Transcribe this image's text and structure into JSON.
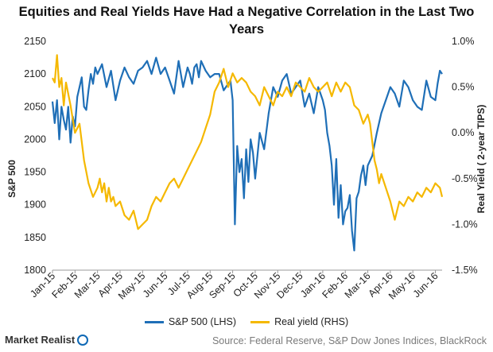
{
  "chart_data": {
    "type": "line",
    "title": "Equities and Real Yields Have Had a Negative Correlation in the Last Two Years",
    "ylabel": "S&P 500",
    "y2label": "Real Yield ( 2-year TIPS)",
    "ylim": [
      1800,
      2150
    ],
    "y2lim": [
      -1.5,
      1.0
    ],
    "yticks": [
      "2150",
      "2100",
      "2050",
      "2000",
      "1950",
      "1900",
      "1850",
      "1800"
    ],
    "y2ticks": [
      "1.0%",
      "0.5%",
      "0.0%",
      "-0.5%",
      "-1.0%",
      "-1.5%"
    ],
    "categories": [
      "Jan-15",
      "Feb-15",
      "Mar-15",
      "Apr-15",
      "May-15",
      "Jun-15",
      "Jul-15",
      "Aug-15",
      "Sep-15",
      "Oct-15",
      "Nov-15",
      "Dec-15",
      "Jan-16",
      "Feb-16",
      "Mar-16",
      "Apr-16",
      "May-16",
      "Jun-16"
    ],
    "series": [
      {
        "name": "S&P 500 (LHS)",
        "axis": "left",
        "color": "#1f6fb7",
        "x": [
          0,
          0.1,
          0.2,
          0.3,
          0.4,
          0.5,
          0.6,
          0.7,
          0.8,
          0.9,
          1.0,
          1.1,
          1.2,
          1.3,
          1.4,
          1.5,
          1.6,
          1.7,
          1.8,
          1.9,
          2.0,
          2.2,
          2.4,
          2.6,
          2.8,
          3.0,
          3.2,
          3.4,
          3.6,
          3.8,
          4.0,
          4.2,
          4.4,
          4.6,
          4.8,
          5.0,
          5.2,
          5.4,
          5.6,
          5.8,
          6.0,
          6.1,
          6.2,
          6.3,
          6.4,
          6.5,
          6.6,
          6.8,
          7.0,
          7.2,
          7.4,
          7.6,
          7.8,
          7.9,
          8.0,
          8.1,
          8.2,
          8.3,
          8.4,
          8.5,
          8.6,
          8.7,
          8.8,
          8.9,
          9.0,
          9.2,
          9.4,
          9.6,
          9.8,
          10.0,
          10.2,
          10.4,
          10.6,
          10.8,
          11.0,
          11.2,
          11.4,
          11.6,
          11.8,
          12.0,
          12.1,
          12.2,
          12.3,
          12.4,
          12.5,
          12.6,
          12.7,
          12.8,
          12.9,
          13.0,
          13.1,
          13.2,
          13.3,
          13.4,
          13.5,
          13.6,
          13.7,
          13.8,
          13.9,
          14.0,
          14.2,
          14.4,
          14.6,
          14.8,
          15.0,
          15.2,
          15.4,
          15.6,
          15.8,
          16.0,
          16.2,
          16.4,
          16.6,
          16.8,
          17.0,
          17.1,
          17.2,
          17.3
        ],
        "values": [
          2058,
          2025,
          2060,
          2000,
          2050,
          2030,
          2015,
          2050,
          1995,
          2035,
          2020,
          2065,
          2080,
          2095,
          2050,
          2045,
          2075,
          2100,
          2085,
          2110,
          2100,
          2115,
          2080,
          2105,
          2060,
          2090,
          2110,
          2095,
          2085,
          2105,
          2110,
          2120,
          2100,
          2125,
          2100,
          2110,
          2090,
          2070,
          2120,
          2080,
          2110,
          2100,
          2085,
          2110,
          2115,
          2095,
          2120,
          2105,
          2095,
          2100,
          2100,
          2075,
          2085,
          2090,
          2060,
          1870,
          1990,
          1950,
          1970,
          1910,
          1985,
          1935,
          2000,
          1980,
          1940,
          2010,
          1985,
          2040,
          2080,
          2065,
          2090,
          2100,
          2070,
          2080,
          2090,
          2050,
          2070,
          2040,
          2080,
          2060,
          2045,
          2010,
          1990,
          1960,
          1900,
          1970,
          1880,
          1930,
          1870,
          1890,
          1895,
          1915,
          1860,
          1830,
          1910,
          1920,
          1945,
          1960,
          1930,
          1960,
          1975,
          2010,
          2040,
          2060,
          2080,
          2070,
          2050,
          2090,
          2080,
          2060,
          2050,
          2045,
          2090,
          2065,
          2060,
          2085,
          2105,
          2100
        ]
      },
      {
        "name": "Real yield (RHS)",
        "axis": "right",
        "color": "#f5b800",
        "x": [
          0,
          0.1,
          0.2,
          0.3,
          0.4,
          0.5,
          0.6,
          0.8,
          1.0,
          1.2,
          1.4,
          1.6,
          1.8,
          2.0,
          2.1,
          2.2,
          2.3,
          2.4,
          2.5,
          2.6,
          2.7,
          2.8,
          3.0,
          3.2,
          3.4,
          3.6,
          3.8,
          4.0,
          4.2,
          4.4,
          4.6,
          4.8,
          5.0,
          5.2,
          5.4,
          5.6,
          5.8,
          6.0,
          6.2,
          6.4,
          6.6,
          6.8,
          7.0,
          7.2,
          7.4,
          7.6,
          7.8,
          8.0,
          8.2,
          8.4,
          8.6,
          8.8,
          9.0,
          9.2,
          9.4,
          9.6,
          9.8,
          10.0,
          10.2,
          10.4,
          10.6,
          10.8,
          11.0,
          11.2,
          11.4,
          11.6,
          11.8,
          12.0,
          12.2,
          12.4,
          12.6,
          12.8,
          13.0,
          13.2,
          13.4,
          13.6,
          13.8,
          14.0,
          14.1,
          14.2,
          14.3,
          14.4,
          14.5,
          14.6,
          14.8,
          15.0,
          15.2,
          15.4,
          15.6,
          15.8,
          16.0,
          16.2,
          16.4,
          16.6,
          16.8,
          17.0,
          17.2,
          17.3
        ],
        "values": [
          0.6,
          0.55,
          0.85,
          0.5,
          0.6,
          0.3,
          0.55,
          0.3,
          0.0,
          0.1,
          -0.3,
          -0.55,
          -0.7,
          -0.6,
          -0.5,
          -0.65,
          -0.55,
          -0.75,
          -0.6,
          -0.75,
          -0.7,
          -0.8,
          -0.75,
          -0.9,
          -0.95,
          -0.85,
          -1.05,
          -1.0,
          -0.95,
          -0.8,
          -0.7,
          -0.75,
          -0.65,
          -0.55,
          -0.5,
          -0.6,
          -0.5,
          -0.4,
          -0.3,
          -0.2,
          -0.1,
          0.05,
          0.2,
          0.45,
          0.55,
          0.7,
          0.5,
          0.65,
          0.55,
          0.6,
          0.55,
          0.45,
          0.4,
          0.3,
          0.5,
          0.4,
          0.3,
          0.45,
          0.4,
          0.5,
          0.4,
          0.55,
          0.5,
          0.45,
          0.6,
          0.5,
          0.45,
          0.5,
          0.55,
          0.4,
          0.55,
          0.45,
          0.55,
          0.5,
          0.3,
          0.25,
          0.1,
          0.2,
          0.1,
          -0.1,
          -0.3,
          -0.4,
          -0.55,
          -0.45,
          -0.6,
          -0.75,
          -0.95,
          -0.75,
          -0.8,
          -0.7,
          -0.75,
          -0.65,
          -0.7,
          -0.6,
          -0.65,
          -0.55,
          -0.6,
          -0.7
        ]
      }
    ],
    "grid": false,
    "legend": "bottom"
  },
  "footer": {
    "brand": "Market Realist",
    "source": "Source: Federal Reserve, S&P Dow Jones Indices, BlackRock"
  }
}
